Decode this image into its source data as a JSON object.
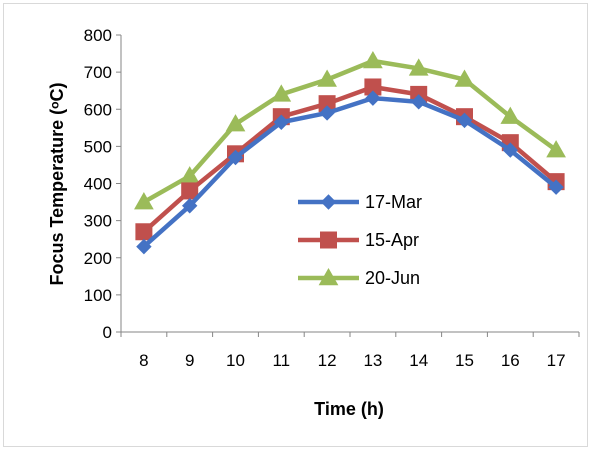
{
  "chart_data": {
    "type": "line",
    "xlabel": "Time (h)",
    "ylabel": "Focus Temperature (ᵒC)",
    "x": [
      8,
      9,
      10,
      11,
      12,
      13,
      14,
      15,
      16,
      17
    ],
    "x_tick_labels": [
      "8",
      "9",
      "10",
      "11",
      "12",
      "13",
      "14",
      "15",
      "16",
      "17"
    ],
    "ylim": [
      0,
      800
    ],
    "y_ticks": [
      0,
      100,
      200,
      300,
      400,
      500,
      600,
      700,
      800
    ],
    "y_tick_labels": [
      "0",
      "100",
      "200",
      "300",
      "400",
      "500",
      "600",
      "700",
      "800"
    ],
    "grid": false,
    "legend_position": "center-right",
    "series": [
      {
        "name": "17-Mar",
        "color": "#4472c4",
        "marker": "diamond",
        "values": [
          230,
          340,
          470,
          565,
          590,
          630,
          620,
          570,
          490,
          390
        ]
      },
      {
        "name": "15-Apr",
        "color": "#c0504d",
        "marker": "square",
        "values": [
          270,
          380,
          480,
          580,
          615,
          660,
          640,
          580,
          510,
          405
        ]
      },
      {
        "name": "20-Jun",
        "color": "#9bbb59",
        "marker": "triangle",
        "values": [
          350,
          420,
          560,
          640,
          680,
          730,
          710,
          680,
          580,
          490
        ]
      }
    ]
  }
}
